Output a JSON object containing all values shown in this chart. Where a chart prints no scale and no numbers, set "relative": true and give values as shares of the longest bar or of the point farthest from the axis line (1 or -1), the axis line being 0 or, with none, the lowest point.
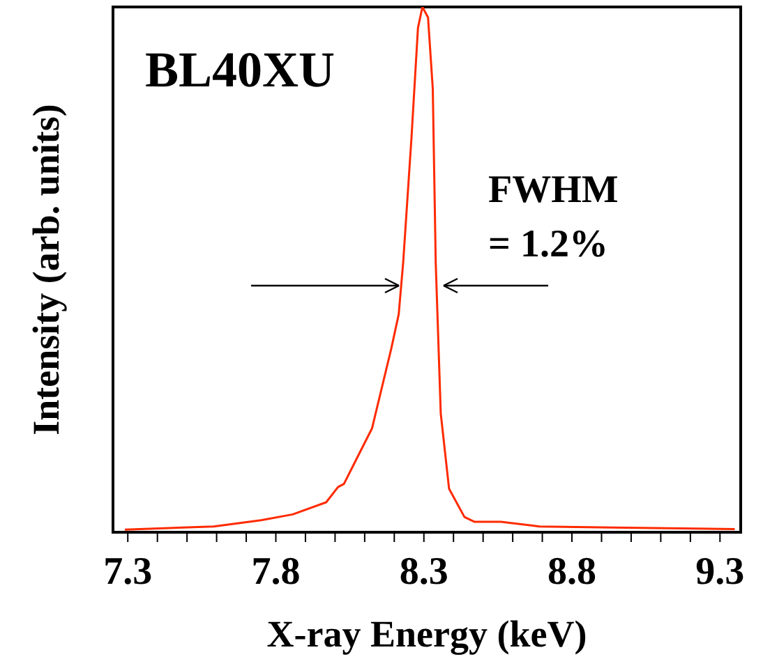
{
  "chart_data": {
    "type": "line",
    "relative": true,
    "xlabel": "X-ray Energy (keV)",
    "ylabel": "Intensity (arb. units)",
    "annotations": [
      "BL40XU",
      "FWHM = 1.2%"
    ],
    "x": [
      7.29,
      7.59,
      7.75,
      7.857,
      7.97,
      8.01,
      8.03,
      8.125,
      8.19,
      8.215,
      8.23,
      8.258,
      8.28,
      8.295,
      8.314,
      8.33,
      8.34,
      8.357,
      8.385,
      8.437,
      8.47,
      8.56,
      8.69,
      8.94,
      9.35
    ],
    "series": [
      {
        "color": "#ff2a00",
        "values": [
          0.005,
          0.011,
          0.023,
          0.034,
          0.057,
          0.086,
          0.092,
          0.198,
          0.35,
          0.415,
          0.513,
          0.75,
          0.96,
          1,
          0.98,
          0.845,
          0.513,
          0.226,
          0.083,
          0.029,
          0.02,
          0.02,
          0.011,
          0.009,
          0.006
        ]
      }
    ],
    "xlim": [
      7.25,
      9.37
    ],
    "xticks": [
      7.3,
      {
        "value": 7.4,
        "label": null
      },
      {
        "value": 7.5,
        "label": null
      },
      {
        "value": 7.6,
        "label": null
      },
      {
        "value": 7.7,
        "label": null
      },
      7.8,
      {
        "value": 7.9,
        "label": null
      },
      {
        "value": 8.0,
        "label": null
      },
      {
        "value": 8.1,
        "label": null
      },
      {
        "value": 8.2,
        "label": null
      },
      8.3,
      {
        "value": 8.4,
        "label": null
      },
      {
        "value": 8.5,
        "label": null
      },
      {
        "value": 8.6,
        "label": null
      },
      {
        "value": 8.7,
        "label": null
      },
      8.8,
      {
        "value": 8.9,
        "label": null
      },
      {
        "value": 9.0,
        "label": null
      },
      {
        "value": 9.1,
        "label": null
      },
      {
        "value": 9.2,
        "label": null
      },
      9.3
    ],
    "grid": false,
    "legend": false,
    "marker": "none",
    "line_style": "solid"
  }
}
